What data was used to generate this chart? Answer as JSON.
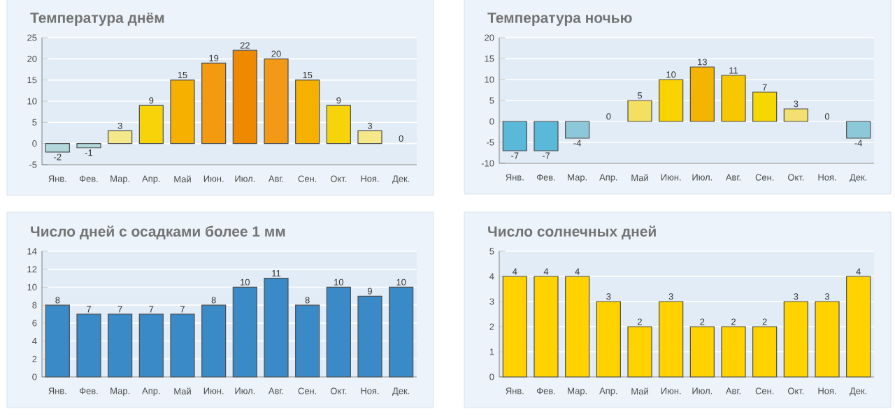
{
  "chart_data": [
    {
      "type": "bar",
      "title": "Температура днём",
      "categories": [
        "Янв.",
        "Фев.",
        "Мар.",
        "Апр.",
        "Май",
        "Июн.",
        "Июл.",
        "Авг.",
        "Сен.",
        "Окт.",
        "Ноя.",
        "Дек."
      ],
      "values": [
        -2,
        -1,
        3,
        9,
        15,
        19,
        22,
        20,
        15,
        9,
        3,
        0
      ],
      "colors": [
        "#b2d8dc",
        "#b2d8dc",
        "#f5e88a",
        "#f7d40a",
        "#f5b000",
        "#f39a10",
        "#ef8a00",
        "#f29a15",
        "#f5b000",
        "#f7d40a",
        "#f5e88a",
        "#f5e88a"
      ],
      "ylim": [
        -5,
        25
      ],
      "yticks": [
        -5,
        0,
        5,
        10,
        15,
        20,
        25
      ],
      "grid": "y",
      "data_labels": true
    },
    {
      "type": "bar",
      "title": "Температура ночью",
      "categories": [
        "Янв.",
        "Фев.",
        "Мар.",
        "Апр.",
        "Май",
        "Июн.",
        "Июл.",
        "Авг.",
        "Сен.",
        "Окт.",
        "Ноя.",
        "Дек."
      ],
      "values": [
        -7,
        -7,
        -4,
        0,
        5,
        10,
        13,
        11,
        7,
        3,
        0,
        -4
      ],
      "colors": [
        "#5ab8d8",
        "#5ab8d8",
        "#8cc8d8",
        "#f3e070",
        "#f3e060",
        "#f8d300",
        "#f5b400",
        "#f7c800",
        "#f5d800",
        "#f3e070",
        "#f3e070",
        "#8cc8d8"
      ],
      "ylim": [
        -10,
        20
      ],
      "yticks": [
        -10,
        -5,
        0,
        5,
        10,
        15,
        20
      ],
      "grid": "y",
      "data_labels": true
    },
    {
      "type": "bar",
      "title": "Число дней с осадками более 1 мм",
      "categories": [
        "Янв.",
        "Фев.",
        "Мар.",
        "Апр.",
        "Май",
        "Июн.",
        "Июл.",
        "Авг.",
        "Сен.",
        "Окт.",
        "Ноя.",
        "Дек."
      ],
      "values": [
        8,
        7,
        7,
        7,
        7,
        8,
        10,
        11,
        8,
        10,
        9,
        10
      ],
      "colors": [
        "#3a8ac8",
        "#3a8ac8",
        "#3a8ac8",
        "#3a8ac8",
        "#3a8ac8",
        "#3a8ac8",
        "#3a8ac8",
        "#3a8ac8",
        "#3a8ac8",
        "#3a8ac8",
        "#3a8ac8",
        "#3a8ac8"
      ],
      "ylim": [
        0,
        14
      ],
      "yticks": [
        0,
        2,
        4,
        6,
        8,
        10,
        12,
        14
      ],
      "grid": "y",
      "data_labels": true
    },
    {
      "type": "bar",
      "title": "Число солнечных дней",
      "categories": [
        "Янв.",
        "Фев.",
        "Мар.",
        "Апр.",
        "Май",
        "Июн.",
        "Июл.",
        "Авг.",
        "Сен.",
        "Окт.",
        "Ноя.",
        "Дек."
      ],
      "values": [
        4,
        4,
        4,
        3,
        2,
        3,
        2,
        2,
        2,
        3,
        3,
        4
      ],
      "colors": [
        "#ffd200",
        "#ffd200",
        "#ffd200",
        "#ffd200",
        "#ffd200",
        "#ffd200",
        "#ffd200",
        "#ffd200",
        "#ffd200",
        "#ffd200",
        "#ffd200",
        "#ffd200"
      ],
      "ylim": [
        0,
        5
      ],
      "yticks": [
        0,
        1,
        2,
        3,
        4,
        5
      ],
      "grid": "y",
      "data_labels": true
    }
  ]
}
